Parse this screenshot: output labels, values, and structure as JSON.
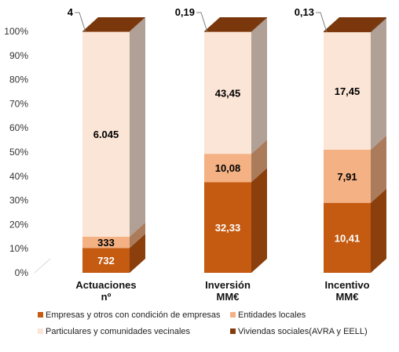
{
  "chart_data": {
    "type": "bar",
    "stacked": "percent",
    "grid": false,
    "legend_position": "bottom",
    "ylim": [
      0,
      100
    ],
    "y_ticks": [
      "0%",
      "10%",
      "20%",
      "30%",
      "40%",
      "50%",
      "60%",
      "70%",
      "80%",
      "90%",
      "100%"
    ],
    "categories": [
      [
        "Actuaciones",
        "nº"
      ],
      [
        "Inversión",
        "MM€"
      ],
      [
        "Incentivo",
        "MM€"
      ]
    ],
    "series": [
      {
        "name": "Empresas y otros con condición de empresas",
        "color": "#C55A11",
        "label_color": "#ffffff",
        "values": [
          732,
          32.33,
          10.41
        ],
        "labels": [
          "732",
          "32,33",
          "10,41"
        ]
      },
      {
        "name": "Entidades locales",
        "color": "#F4B183",
        "label_color": "#000000",
        "values": [
          333,
          10.08,
          7.91
        ],
        "labels": [
          "333",
          "10,08",
          "7,91"
        ]
      },
      {
        "name": "Particulares y comunidades vecinales",
        "color": "#FBE5D6",
        "label_color": "#000000",
        "values": [
          6045,
          43.45,
          17.45
        ],
        "labels": [
          "6.045",
          "43,45",
          "17,45"
        ]
      },
      {
        "name": "Viviendas sociales(AVRA y EELL)",
        "color": "#843C0C",
        "label_color": "#000000",
        "values": [
          4,
          0.19,
          0.13
        ],
        "labels": [
          "4",
          "0,19",
          "0,13"
        ]
      }
    ]
  }
}
